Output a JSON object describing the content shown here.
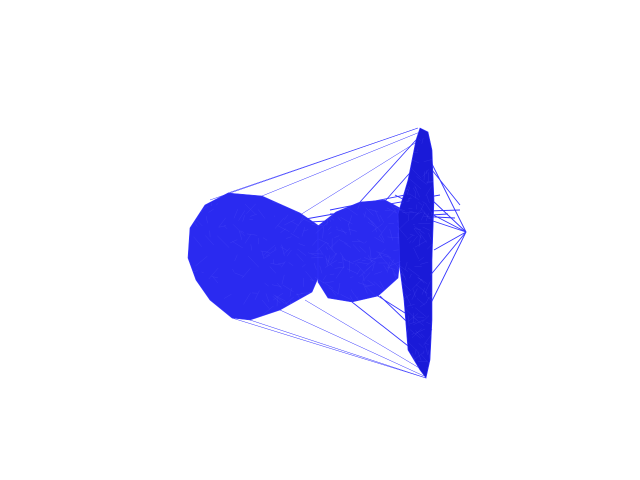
{
  "scene": {
    "background_color": "#ffffff",
    "mesh_color": "#2a2af0",
    "mesh_dark_color": "#1a1ad8",
    "wire_color": "#3535ff",
    "object_icon": "wireframe-mesh-icon"
  }
}
